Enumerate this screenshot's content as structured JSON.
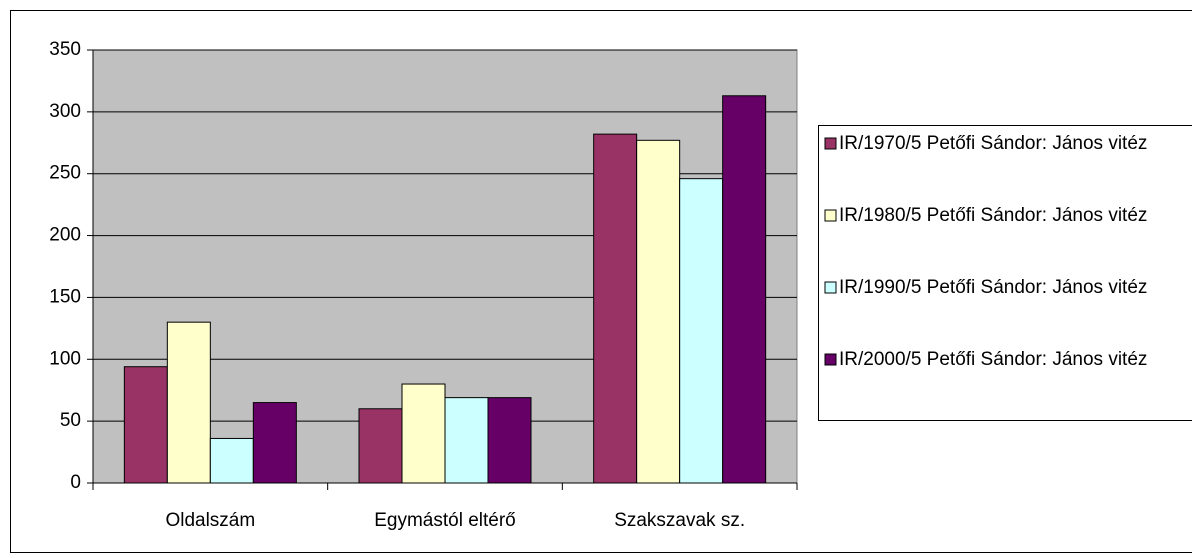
{
  "chart_data": {
    "type": "bar",
    "categories": [
      "Oldalszám",
      "Egymástól eltérő",
      "Szakszavak sz."
    ],
    "series": [
      {
        "name": "IR/1970/5 Petőfi Sándor: János vitéz",
        "color": "#993366",
        "values": [
          94,
          60,
          282
        ]
      },
      {
        "name": "IR/1980/5 Petőfi Sándor: János vitéz",
        "color": "#ffffcc",
        "values": [
          130,
          80,
          277
        ]
      },
      {
        "name": "IR/1990/5 Petőfi Sándor: János vitéz",
        "color": "#ccffff",
        "values": [
          36,
          69,
          246
        ]
      },
      {
        "name": "IR/2000/5 Petőfi Sándor: János vitéz",
        "color": "#660066",
        "values": [
          65,
          69,
          313
        ]
      }
    ],
    "ylim": [
      0,
      350
    ],
    "yticks": [
      0,
      50,
      100,
      150,
      200,
      250,
      300,
      350
    ],
    "grid": true,
    "legend": "right"
  }
}
